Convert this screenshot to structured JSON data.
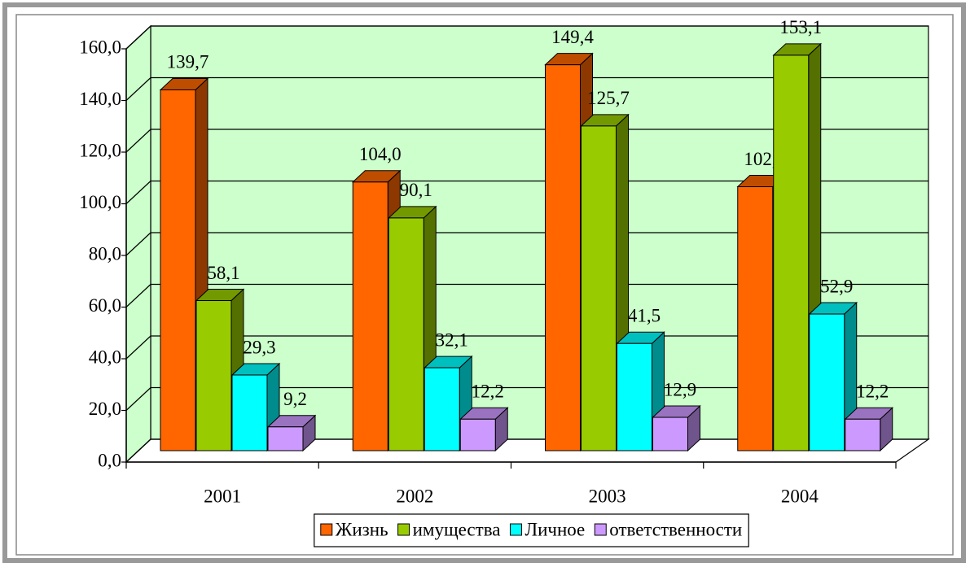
{
  "chart_data": {
    "type": "bar3d",
    "categories": [
      "2001",
      "2002",
      "2003",
      "2004"
    ],
    "series": [
      {
        "name": "Жизнь",
        "color": "#ff6600",
        "values": [
          139.7,
          104.0,
          149.4,
          102.2
        ],
        "value_labels": [
          "139,7",
          "104,0",
          "149,4",
          "102,2"
        ]
      },
      {
        "name": "имущества",
        "color": "#99cc00",
        "values": [
          58.1,
          90.1,
          125.7,
          153.1
        ],
        "value_labels": [
          "58,1",
          "90,1",
          "125,7",
          "153,1"
        ]
      },
      {
        "name": "Личное",
        "color": "#00ffff",
        "values": [
          29.3,
          32.1,
          41.5,
          52.9
        ],
        "value_labels": [
          "29,3",
          "32,1",
          "41,5",
          "52,9"
        ]
      },
      {
        "name": "ответственности",
        "color": "#cc99ff",
        "values": [
          9.2,
          12.2,
          12.9,
          12.2
        ],
        "value_labels": [
          "9,2",
          "12,2",
          "12,9",
          "12,2"
        ]
      }
    ],
    "ylim": [
      0,
      160
    ],
    "yticks": [
      {
        "value": 0,
        "label": "0,0"
      },
      {
        "value": 20,
        "label": "20,0"
      },
      {
        "value": 40,
        "label": "40,0"
      },
      {
        "value": 60,
        "label": "60,0"
      },
      {
        "value": 80,
        "label": "80,0"
      },
      {
        "value": 100,
        "label": "100,0"
      },
      {
        "value": 120,
        "label": "120,0"
      },
      {
        "value": 140,
        "label": "140,0"
      },
      {
        "value": 160,
        "label": "160,0"
      }
    ],
    "grid": true,
    "legend": "bottom"
  }
}
